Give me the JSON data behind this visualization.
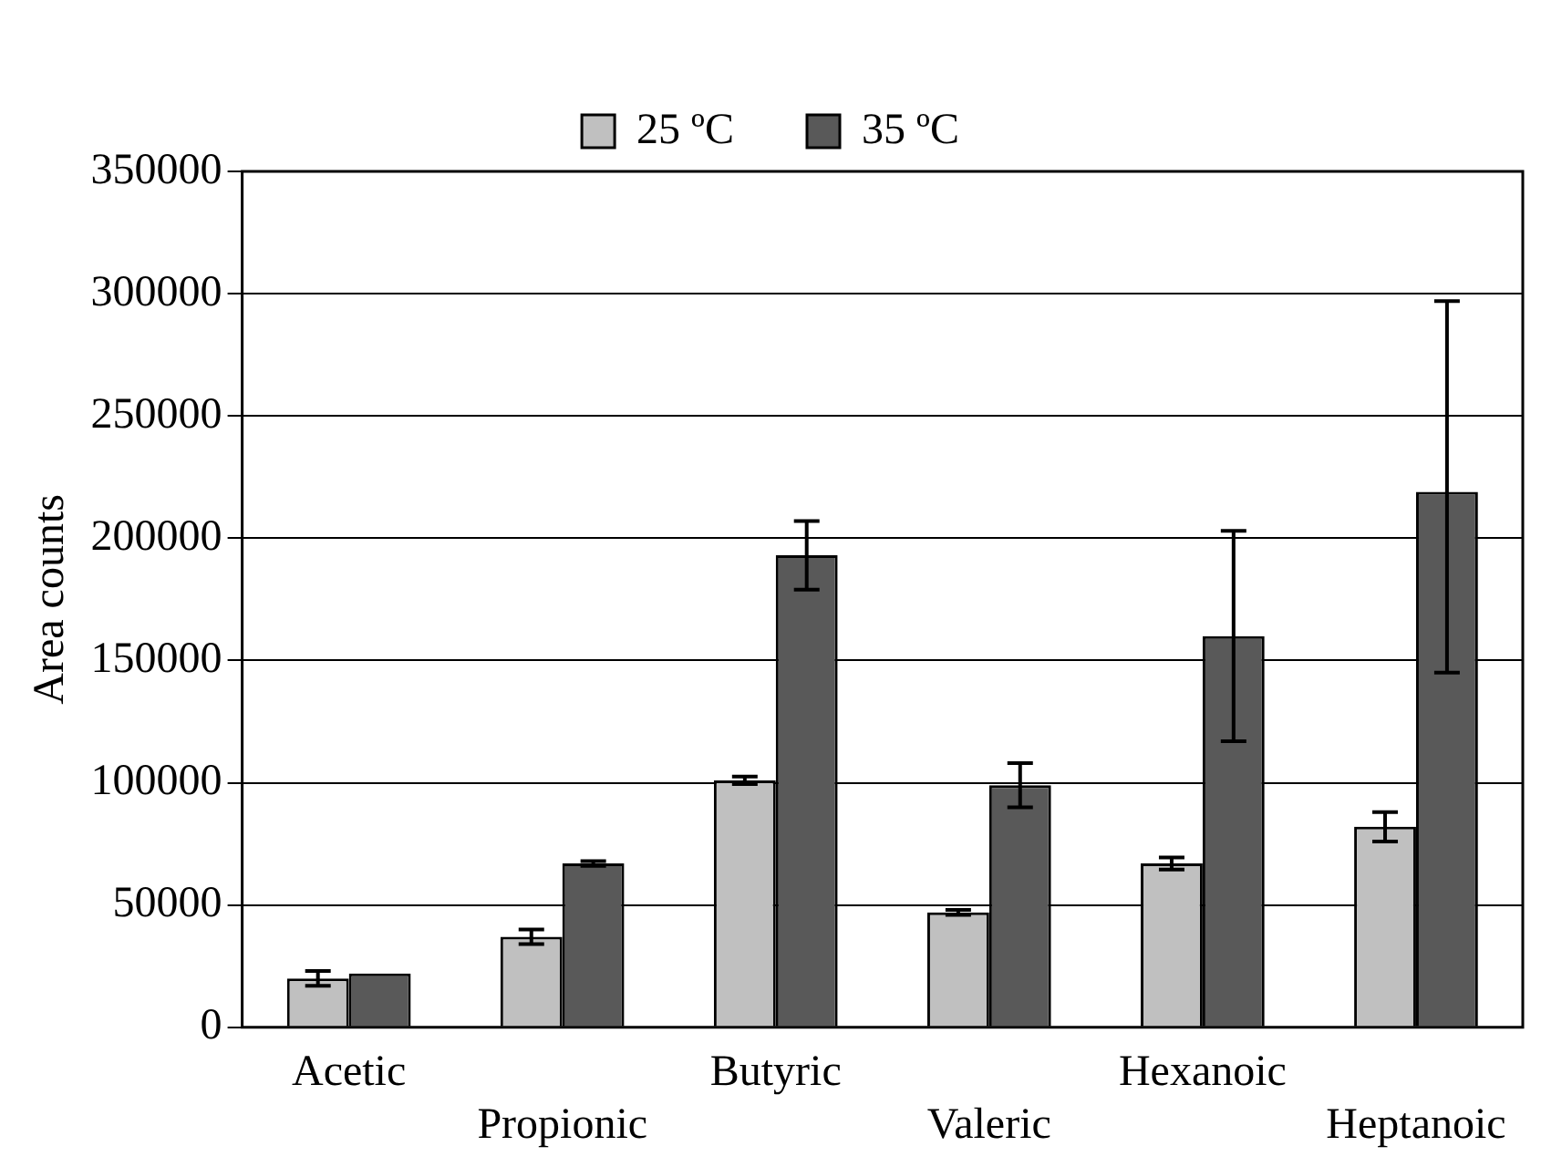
{
  "chart_data": {
    "type": "bar",
    "ylabel": "Area counts",
    "categories": [
      "Acetic",
      "Propionic",
      "Butyric",
      "Valeric",
      "Hexanoic",
      "Heptanoic"
    ],
    "series": [
      {
        "name": "25 ºC",
        "color": "#c0c0c0",
        "values": [
          20000,
          37000,
          101000,
          47000,
          67000,
          82000
        ],
        "errors": [
          3000,
          3000,
          1500,
          1000,
          2500,
          6000
        ]
      },
      {
        "name": "35 ºC",
        "color": "#595959",
        "values": [
          22000,
          67000,
          193000,
          99000,
          160000,
          219000
        ],
        "errors": [
          null,
          1000,
          14000,
          9000,
          43000,
          [
            145000,
            297000
          ]
        ]
      }
    ],
    "ylim": [
      0,
      350000
    ],
    "yticks": [
      0,
      50000,
      100000,
      150000,
      200000,
      250000,
      300000,
      350000
    ],
    "grid": "y",
    "legend": "top"
  }
}
